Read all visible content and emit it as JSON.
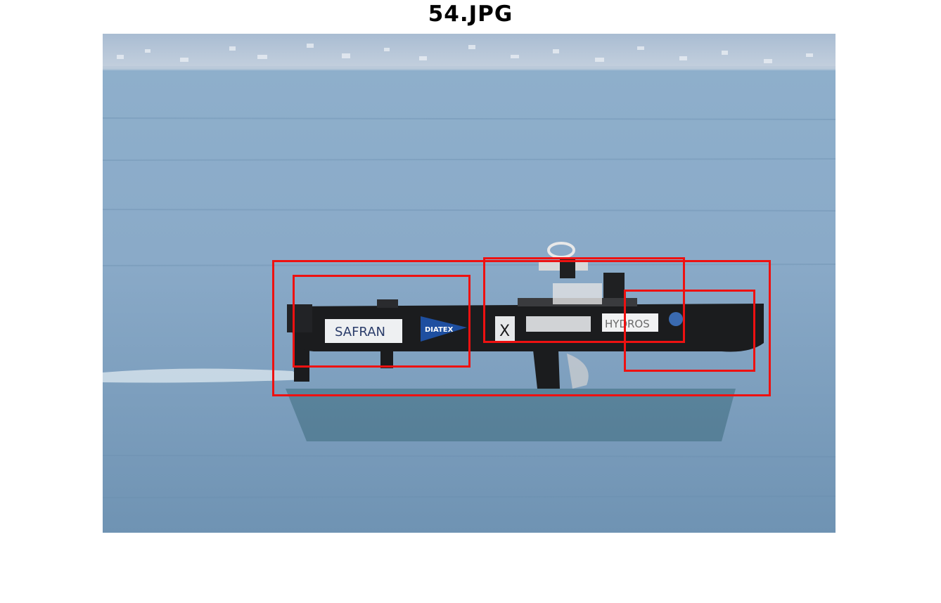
{
  "figure": {
    "title": "54.JPG"
  },
  "photo": {
    "description_icon": "boat-photo",
    "colors": {
      "water": "#7e9fbd",
      "water_dark": "#5b7e9d",
      "shore": "#9fb3cb",
      "hull": "#1b1c1e",
      "bbox": "#ee1111"
    },
    "hull_decals": [
      {
        "text": "SAFRAN"
      },
      {
        "text": "DIATEX"
      },
      {
        "text": "X"
      },
      {
        "text": "HYDROS"
      }
    ]
  },
  "detections": [
    {
      "label": "box-outer"
    },
    {
      "label": "box-left"
    },
    {
      "label": "box-top"
    },
    {
      "label": "box-right"
    }
  ]
}
